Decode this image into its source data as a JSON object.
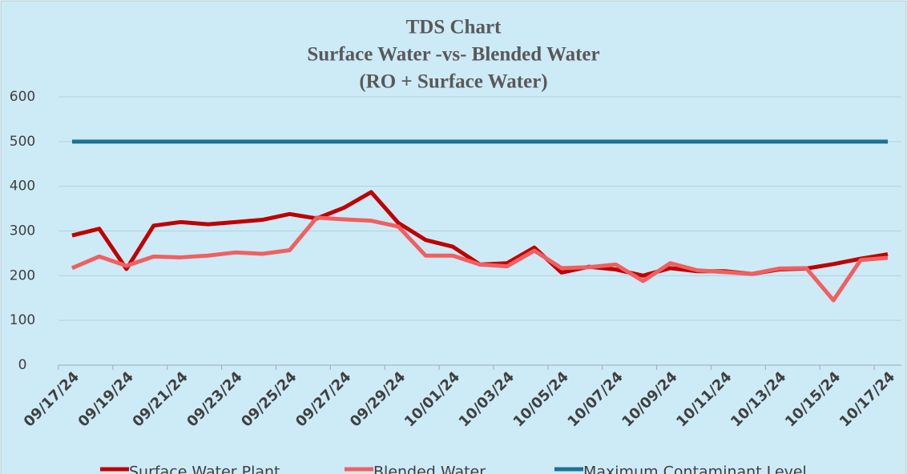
{
  "chart_data": {
    "type": "line",
    "title": [
      "TDS Chart",
      "Surface Water -vs- Blended Water",
      "(RO + Surface Water)"
    ],
    "categories": [
      "09/17/24",
      null,
      "09/19/24",
      null,
      "09/21/24",
      null,
      "09/23/24",
      null,
      "09/25/24",
      null,
      "09/27/24",
      null,
      "09/29/24",
      null,
      "10/01/24",
      null,
      "10/03/24",
      null,
      "10/05/24",
      null,
      "10/07/24",
      null,
      "10/09/24",
      null,
      "10/11/24",
      null,
      "10/13/24",
      null,
      "10/15/24",
      null,
      "10/17/24"
    ],
    "series": [
      {
        "name": "Surface Water Plant",
        "color": "#c00000",
        "values": [
          290,
          305,
          215,
          312,
          320,
          315,
          320,
          325,
          338,
          328,
          352,
          387,
          318,
          280,
          265,
          225,
          228,
          263,
          207,
          220,
          214,
          200,
          217,
          210,
          210,
          204,
          214,
          216,
          226,
          238,
          248
        ]
      },
      {
        "name": "Blended Water",
        "color": "#f06060",
        "values": [
          217,
          243,
          222,
          243,
          241,
          245,
          252,
          249,
          257,
          330,
          326,
          323,
          310,
          245,
          245,
          225,
          221,
          256,
          217,
          219,
          225,
          188,
          228,
          212,
          208,
          204,
          216,
          217,
          145,
          235,
          240
        ]
      },
      {
        "name": "Maximum Contaminant Level",
        "color": "#1b7394",
        "values": [
          500,
          500,
          500,
          500,
          500,
          500,
          500,
          500,
          500,
          500,
          500,
          500,
          500,
          500,
          500,
          500,
          500,
          500,
          500,
          500,
          500,
          500,
          500,
          500,
          500,
          500,
          500,
          500,
          500,
          500,
          500
        ]
      }
    ],
    "ylim": [
      0,
      600
    ],
    "yticks": [
      0,
      100,
      200,
      300,
      400,
      500,
      600
    ],
    "grid": true,
    "legend": "bottom"
  }
}
